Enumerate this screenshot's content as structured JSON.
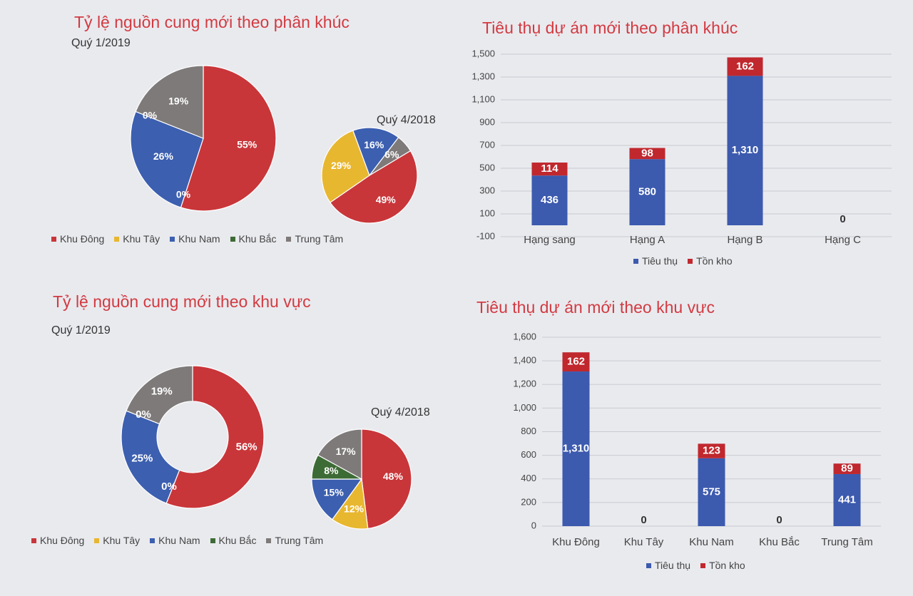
{
  "colors": {
    "Khu Đông": "#c8363a",
    "Khu Tây": "#e8b730",
    "Khu Nam": "#3c5fb0",
    "Khu Bắc": "#3d6b35",
    "Trung Tâm": "#7f7a7a",
    "Tiêu thụ": "#3c5aae",
    "Tồn kho": "#c0282e"
  },
  "legend_pie": [
    "Khu Đông",
    "Khu Tây",
    "Khu Nam",
    "Khu Bắc",
    "Trung Tâm"
  ],
  "legend_bar": [
    "Tiêu thụ",
    "Tồn kho"
  ],
  "panels": {
    "tl": {
      "title": "Tỷ lệ nguồn cung mới theo phân khúc",
      "sub_main": "Quý 1/2019",
      "sub_small": "Quý 4/2018"
    },
    "tr": {
      "title": "Tiêu thụ dự án mới theo phân khúc"
    },
    "bl": {
      "title": "Tỷ lệ nguồn cung mới theo khu vực",
      "sub_main": "Quý 1/2019",
      "sub_small": "Quý 4/2018"
    },
    "br": {
      "title": "Tiêu thụ dự án mới theo khu vực"
    }
  },
  "chart_data": [
    {
      "type": "pie",
      "title": "Tỷ lệ nguồn cung mới theo phân khúc",
      "subtitle": "Quý 1/2019",
      "categories": [
        "Khu Đông",
        "Khu Tây",
        "Khu Nam",
        "Khu Bắc",
        "Trung Tâm"
      ],
      "values": [
        55,
        0,
        26,
        0,
        19
      ],
      "labels": [
        "55%",
        "",
        "26%",
        "0%",
        "19%"
      ],
      "extra_labels": [
        "0%"
      ]
    },
    {
      "type": "pie",
      "subtitle": "Quý 4/2018",
      "categories": [
        "Khu Đông",
        "Khu Tây",
        "Khu Nam",
        "Trung Tâm"
      ],
      "values": [
        49,
        29,
        16,
        6
      ],
      "labels": [
        "49%",
        "29%",
        "16%",
        "6%"
      ]
    },
    {
      "type": "bar",
      "title": "Tiêu thụ dự án mới theo phân khúc",
      "stacked": true,
      "categories": [
        "Hạng sang",
        "Hạng A",
        "Hạng B",
        "Hạng C"
      ],
      "series": [
        {
          "name": "Tiêu thụ",
          "values": [
            436,
            580,
            1310,
            0
          ]
        },
        {
          "name": "Tồn kho",
          "values": [
            114,
            98,
            162,
            0
          ]
        }
      ],
      "data_labels": [
        [
          "436",
          "580",
          "1,310",
          ""
        ],
        [
          "114",
          "98",
          "162",
          ""
        ]
      ],
      "zero_labels": [
        "",
        "",
        "",
        "0"
      ],
      "yticks": [
        "-100",
        "100",
        "300",
        "500",
        "700",
        "900",
        "1,100",
        "1,300",
        "1,500"
      ],
      "ylim": [
        -100,
        1500
      ],
      "grid": true,
      "legend": "bottom"
    },
    {
      "type": "pie",
      "donut": true,
      "title": "Tỷ lệ nguồn cung mới theo khu vực",
      "subtitle": "Quý 1/2019",
      "categories": [
        "Khu Đông",
        "Khu Tây",
        "Khu Nam",
        "Khu Bắc",
        "Trung Tâm"
      ],
      "values": [
        56,
        0,
        25,
        0,
        19
      ],
      "labels": [
        "56%",
        "",
        "25%",
        "0%",
        "19%"
      ],
      "extra_labels": [
        "0%"
      ]
    },
    {
      "type": "pie",
      "subtitle": "Quý 4/2018",
      "categories": [
        "Khu Đông",
        "Khu Tây",
        "Khu Nam",
        "Khu Bắc",
        "Trung Tâm"
      ],
      "values": [
        48,
        12,
        15,
        8,
        17
      ],
      "labels": [
        "48%",
        "12%",
        "15%",
        "8%",
        "17%"
      ]
    },
    {
      "type": "bar",
      "title": "Tiêu thụ dự án mới theo khu vực",
      "stacked": true,
      "categories": [
        "Khu Đông",
        "Khu Tây",
        "Khu Nam",
        "Khu Bắc",
        "Trung Tâm"
      ],
      "series": [
        {
          "name": "Tiêu thụ",
          "values": [
            1310,
            0,
            575,
            0,
            441
          ]
        },
        {
          "name": "Tồn kho",
          "values": [
            162,
            0,
            123,
            0,
            89
          ]
        }
      ],
      "data_labels": [
        [
          "1,310",
          "",
          "575",
          "",
          "441"
        ],
        [
          "162",
          "",
          "123",
          "",
          "89"
        ]
      ],
      "zero_labels": [
        "",
        "0",
        "",
        "0",
        ""
      ],
      "yticks": [
        "0",
        "200",
        "400",
        "600",
        "800",
        "1,000",
        "1,200",
        "1,400",
        "1,600"
      ],
      "ylim": [
        0,
        1600
      ],
      "grid": true,
      "legend": "bottom"
    }
  ]
}
